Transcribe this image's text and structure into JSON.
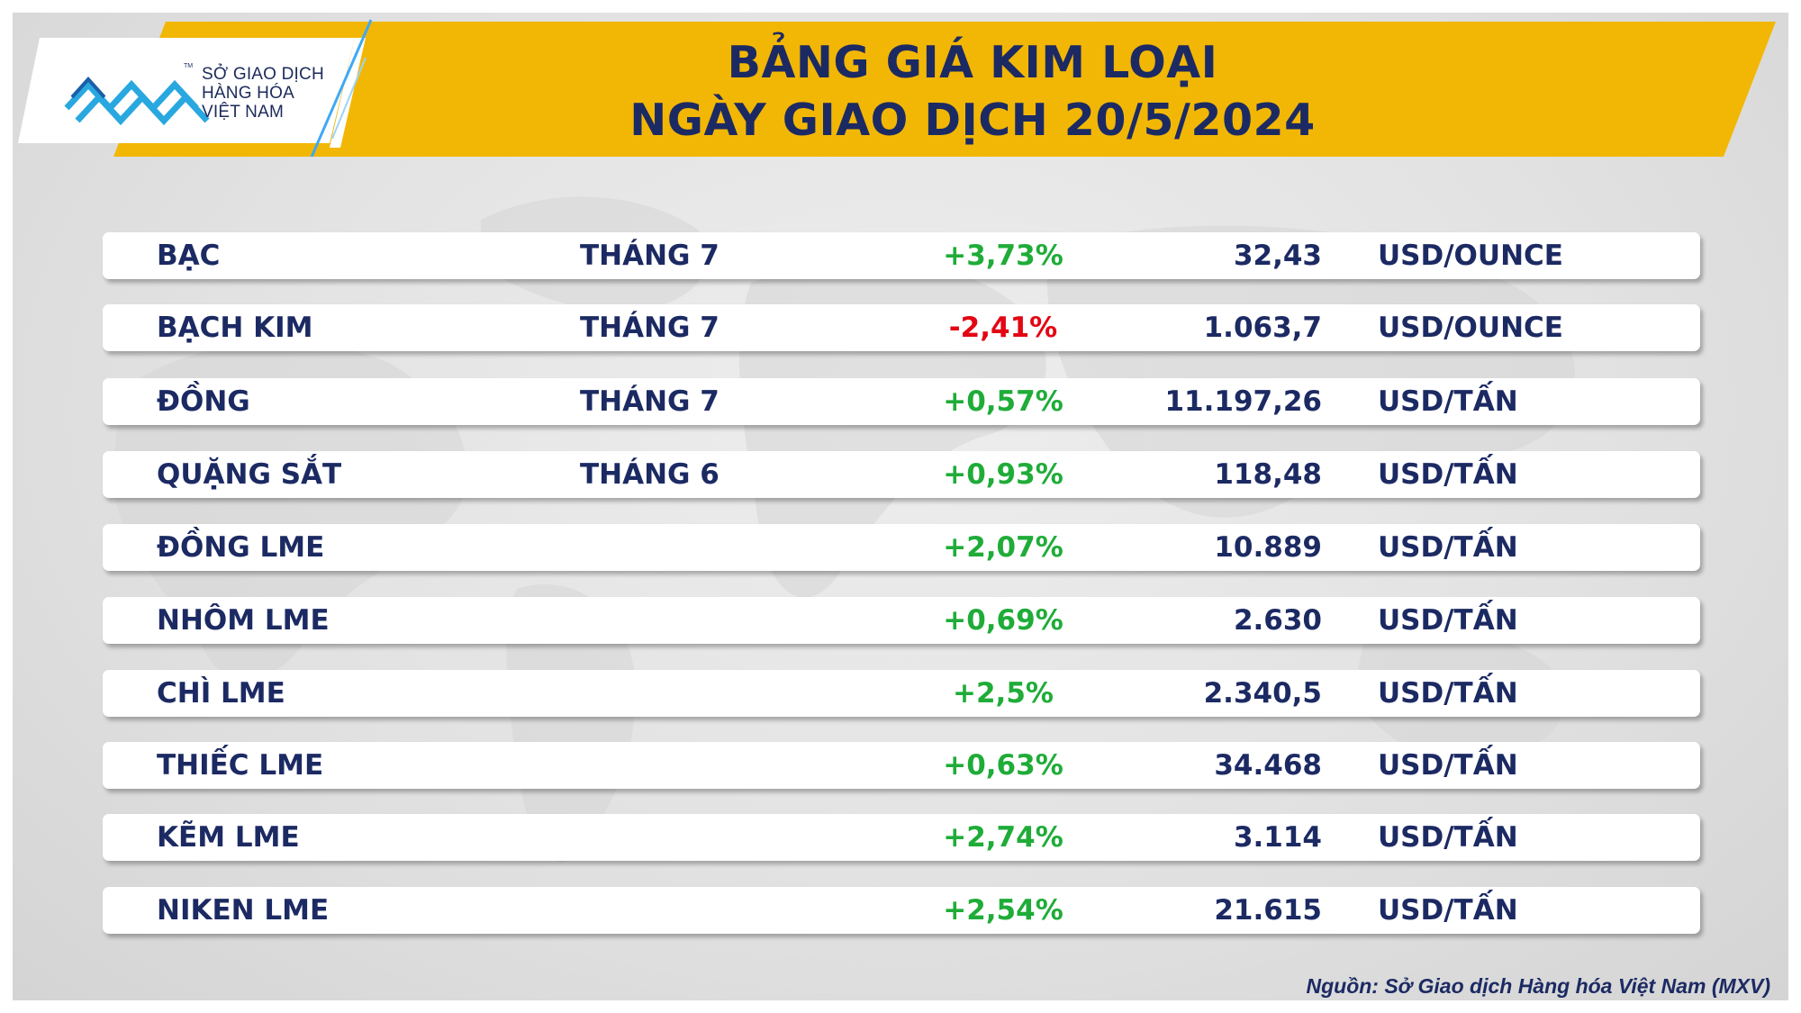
{
  "logo": {
    "icon": "mxv-logo-icon",
    "lines": [
      "SỞ GIAO DỊCH",
      "HÀNG HÓA",
      "VIỆT NAM"
    ],
    "tm": "TM"
  },
  "header": {
    "title_line1": "BẢNG GIÁ KIM LOẠI",
    "title_line2": "NGÀY GIAO DỊCH 20/5/2024"
  },
  "colors": {
    "banner": "#f2b705",
    "title": "#1c2a63",
    "positive": "#1fac38",
    "negative": "#e30613"
  },
  "rows": [
    {
      "name": "BẠC",
      "month": "THÁNG 7",
      "change": "+3,73%",
      "price": "32,43",
      "unit": "USD/OUNCE",
      "trend": "pos"
    },
    {
      "name": "BẠCH KIM",
      "month": "THÁNG 7",
      "change": "-2,41%",
      "price": "1.063,7",
      "unit": "USD/OUNCE",
      "trend": "neg"
    },
    {
      "name": "ĐỒNG",
      "month": "THÁNG 7",
      "change": "+0,57%",
      "price": "11.197,26",
      "unit": "USD/TẤN",
      "trend": "pos"
    },
    {
      "name": "QUẶNG SẮT",
      "month": "THÁNG 6",
      "change": "+0,93%",
      "price": "118,48",
      "unit": "USD/TẤN",
      "trend": "pos"
    },
    {
      "name": "ĐỒNG LME",
      "month": "",
      "change": "+2,07%",
      "price": "10.889",
      "unit": "USD/TẤN",
      "trend": "pos"
    },
    {
      "name": "NHÔM LME",
      "month": "",
      "change": "+0,69%",
      "price": "2.630",
      "unit": "USD/TẤN",
      "trend": "pos"
    },
    {
      "name": "CHÌ LME",
      "month": "",
      "change": "+2,5%",
      "price": "2.340,5",
      "unit": "USD/TẤN",
      "trend": "pos"
    },
    {
      "name": "THIẾC LME",
      "month": "",
      "change": "+0,63%",
      "price": "34.468",
      "unit": "USD/TẤN",
      "trend": "pos"
    },
    {
      "name": "KẼM LME",
      "month": "",
      "change": "+2,74%",
      "price": "3.114",
      "unit": "USD/TẤN",
      "trend": "pos"
    },
    {
      "name": "NIKEN LME",
      "month": "",
      "change": "+2,54%",
      "price": "21.615",
      "unit": "USD/TẤN",
      "trend": "pos"
    }
  ],
  "footer": {
    "source": "Nguồn: Sở Giao dịch Hàng hóa Việt Nam (MXV)"
  }
}
